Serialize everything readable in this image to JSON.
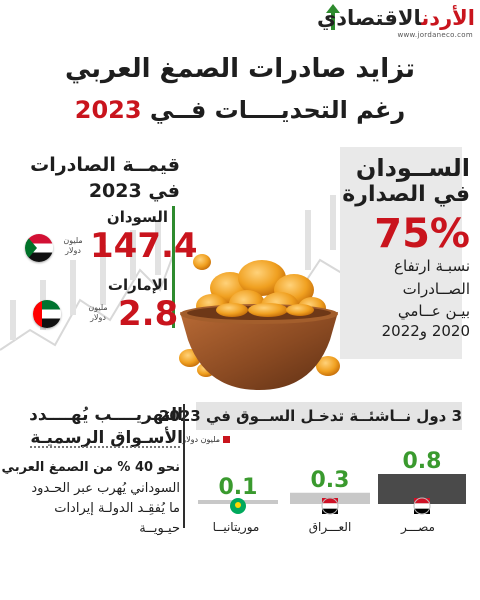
{
  "logo": {
    "red": "الأردن",
    "dark": "الاقتصادي",
    "url": "www.jordaneco.com"
  },
  "title": {
    "line1": "تزايد صادرات الصمغ العربي",
    "line2_prefix": "رغم التحديــــات فــي ",
    "line2_year": "2023"
  },
  "export_value": {
    "title_line1": "قيمــة الصادرات",
    "title_line2": "في 2023",
    "items": [
      {
        "country": "السودان",
        "value": "147.4",
        "unit_line1": "مليون",
        "unit_line2": "دولار"
      },
      {
        "country": "الإمارات",
        "value": "2.8",
        "unit_line1": "مليون",
        "unit_line2": "دولار"
      }
    ]
  },
  "sudan_panel": {
    "line1": "الســودان",
    "line2": "في الصدارة",
    "percent": "75%",
    "line3": "نسبـة ارتفاع",
    "line4": "الصــادرات",
    "line5": "بيـن عــامي",
    "line6": "2020 و2022"
  },
  "market": {
    "header": "3 دول نــاشئــة تدخـل الســوق في 2023",
    "legend": "مليون دولار"
  },
  "chart_data": {
    "type": "bar",
    "title": "3 دول نــاشئــة تدخـل الســوق في 2023",
    "legend": [
      "مليون دولار"
    ],
    "categories": [
      "مصـــر",
      "العـــراق",
      "موريتانيــا"
    ],
    "values": [
      0.8,
      0.3,
      0.1
    ],
    "value_labels": [
      "0.8",
      "0.3",
      "0.1"
    ],
    "ylim": [
      0,
      0.8
    ],
    "grid": false,
    "colors": {
      "bar": "#4a4a4a",
      "value": "#3a9a2e",
      "legend": "#c9141d"
    }
  },
  "smuggling": {
    "title_line1": "التهريــــب يُهــــدد",
    "title_line2": "الأسـواق الرسميـة",
    "body_line1": "نحو 40 % من الصمغ العربي",
    "body_line2": "السوداني يُهرب عبر الحـدود",
    "body_line3": "ما يُفقِـد الدولـة إيرادات",
    "body_line4": "حيـويــة"
  },
  "colors": {
    "accent_red": "#c9141d",
    "accent_green": "#2e8b2e",
    "panel_gray": "#e9e9e9",
    "text_dark": "#1e1e1e"
  }
}
